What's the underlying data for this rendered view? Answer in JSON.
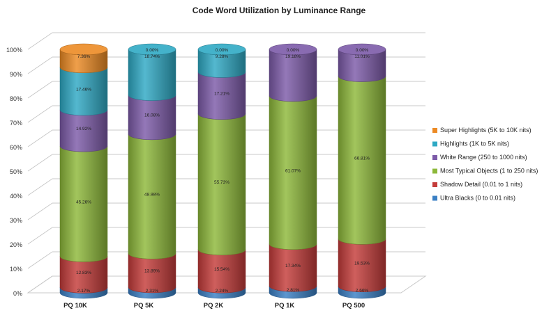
{
  "chart_data": {
    "type": "bar",
    "title": "Code Word Utilization by Luminance Range",
    "stacked": true,
    "percent_stacked": true,
    "style": "3d-cylinder",
    "categories": [
      "PQ 10K",
      "PQ 5K",
      "PQ 2K",
      "PQ 1K",
      "PQ 500"
    ],
    "ylim": [
      0,
      100
    ],
    "yticks": [
      "0%",
      "10%",
      "20%",
      "30%",
      "40%",
      "50%",
      "60%",
      "70%",
      "80%",
      "90%",
      "100%"
    ],
    "grid": true,
    "legend_position": "right",
    "series": [
      {
        "name": "Ultra Blacks (0 to 0.01 nits)",
        "color": "#3a7fc4",
        "values": [
          2.17,
          2.31,
          2.24,
          2.81,
          2.66
        ],
        "labels": [
          "2.17%",
          "2.31%",
          "2.24%",
          "2.81%",
          "2.66%"
        ]
      },
      {
        "name": "Shadow Detail (0.01 to 1 nits)",
        "color": "#c43c3a",
        "values": [
          12.83,
          13.89,
          15.54,
          17.34,
          19.53
        ],
        "labels": [
          "12.83%",
          "13.89%",
          "15.54%",
          "17.34%",
          "19.53%"
        ]
      },
      {
        "name": "Most Typical Objects (1 to 250 nits)",
        "color": "#8db83a",
        "values": [
          45.26,
          48.98,
          55.73,
          61.07,
          66.81
        ],
        "labels": [
          "45.26%",
          "48.98%",
          "55.73%",
          "61.07%",
          "66.81%"
        ]
      },
      {
        "name": "White Range (250 to 1000 nits)",
        "color": "#7c5aa8",
        "values": [
          14.92,
          16.08,
          17.21,
          19.18,
          11.01
        ],
        "labels": [
          "14.92%",
          "16.08%",
          "17.21%",
          "19.18%",
          "11.01%"
        ]
      },
      {
        "name": "Highlights (1K to 5K nits)",
        "color": "#2fa9c4",
        "values": [
          17.46,
          18.74,
          9.28,
          0,
          0
        ],
        "labels": [
          "17.46%",
          "18.74%",
          "9.28%",
          "",
          ""
        ]
      },
      {
        "name": "Super Highlights (5K to 10K nits)",
        "color": "#ec8a24",
        "values": [
          7.36,
          0,
          0,
          0,
          0
        ],
        "labels": [
          "7.36%",
          "0.00%",
          "0.00%",
          "0.00%",
          "0.00%"
        ]
      }
    ]
  }
}
